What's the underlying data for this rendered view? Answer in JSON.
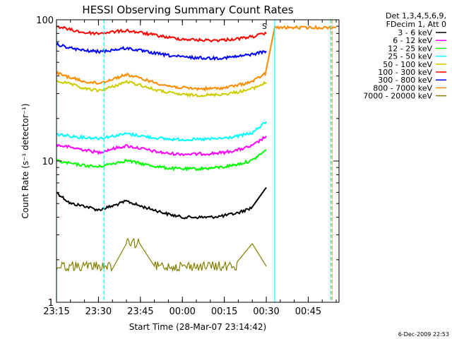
{
  "chart_data": {
    "type": "line",
    "title": "HESSI Observing Summary Count Rates",
    "xlabel": "Start Time (28-Mar-07 23:14:42)",
    "ylabel": "Count Rate (s⁻¹ detector⁻¹)",
    "y_scale": "log",
    "ylim": [
      1,
      100
    ],
    "xlim": [
      "23:15",
      "00:56"
    ],
    "grid": false,
    "legend_placement": "right",
    "footer": "6-Dec-2009 22:53",
    "x_ticks": [
      "23:15",
      "23:30",
      "23:45",
      "00:00",
      "00:15",
      "00:30",
      "00:45"
    ],
    "y_ticks": [
      "1",
      "10",
      "100"
    ],
    "legend_header": [
      "Det 1,3,4,5,6,9,",
      "FDecim 1, Att 0"
    ],
    "annotations": [
      {
        "label": "S",
        "time": "00:30",
        "color": "#ff8c00"
      }
    ],
    "vlines": [
      {
        "time": "23:15",
        "color": "#00ffff",
        "style": "dashed"
      },
      {
        "time": "23:32",
        "color": "#00ffff",
        "style": "dashed"
      },
      {
        "time": "00:33",
        "color": "#00ffff",
        "style": "solid"
      },
      {
        "time": "00:53",
        "color": "#00ffff",
        "style": "dashed"
      },
      {
        "time": "00:53",
        "color": "#ff8c00",
        "style": "dashed"
      }
    ],
    "series": [
      {
        "name": "3 - 6 keV",
        "color": "#000000",
        "time": [
          "23:15",
          "23:20",
          "23:25",
          "23:30",
          "23:35",
          "23:40",
          "23:45",
          "23:50",
          "23:55",
          "00:00",
          "00:05",
          "00:10",
          "00:15",
          "00:20",
          "00:25",
          "00:30"
        ],
        "values": [
          6.0,
          5.0,
          4.8,
          4.5,
          4.8,
          5.2,
          4.8,
          4.5,
          4.2,
          4.0,
          4.0,
          4.0,
          4.1,
          4.3,
          4.7,
          6.5
        ]
      },
      {
        "name": "6 - 12 keV",
        "color": "#ff00ff",
        "time": [
          "23:15",
          "23:20",
          "23:25",
          "23:30",
          "23:35",
          "23:40",
          "23:45",
          "23:50",
          "23:55",
          "00:00",
          "00:05",
          "00:10",
          "00:15",
          "00:20",
          "00:25",
          "00:30"
        ],
        "values": [
          13.0,
          12.5,
          12.0,
          11.5,
          12.2,
          12.8,
          12.3,
          11.7,
          11.3,
          11.2,
          11.2,
          11.3,
          11.5,
          12.0,
          12.8,
          15.0
        ]
      },
      {
        "name": "12 - 25 keV",
        "color": "#00ff00",
        "time": [
          "23:15",
          "23:20",
          "23:25",
          "23:30",
          "23:35",
          "23:40",
          "23:45",
          "23:50",
          "23:55",
          "00:00",
          "00:05",
          "00:10",
          "00:15",
          "00:20",
          "00:25",
          "00:30"
        ],
        "values": [
          10.0,
          9.6,
          9.3,
          9.1,
          9.6,
          10.1,
          9.6,
          9.2,
          8.9,
          8.8,
          8.8,
          8.9,
          9.1,
          9.5,
          10.1,
          12.0
        ]
      },
      {
        "name": "25 - 50 keV",
        "color": "#00ffff",
        "time": [
          "23:15",
          "23:20",
          "23:25",
          "23:30",
          "23:35",
          "23:40",
          "23:45",
          "23:50",
          "23:55",
          "00:00",
          "00:05",
          "00:10",
          "00:15",
          "00:20",
          "00:25",
          "00:30"
        ],
        "values": [
          15.5,
          15.0,
          14.7,
          14.5,
          15.0,
          15.6,
          15.1,
          14.6,
          14.3,
          14.2,
          14.2,
          14.3,
          14.5,
          15.0,
          15.8,
          19.0
        ]
      },
      {
        "name": "50 - 100 keV",
        "color": "#cccc00",
        "time": [
          "23:15",
          "23:20",
          "23:25",
          "23:30",
          "23:35",
          "23:40",
          "23:45",
          "23:50",
          "23:55",
          "00:00",
          "00:05",
          "00:10",
          "00:15",
          "00:20",
          "00:25",
          "00:30"
        ],
        "values": [
          37.0,
          35.0,
          32.5,
          31.5,
          33.5,
          36.5,
          34.5,
          32.0,
          30.5,
          29.5,
          29.3,
          29.3,
          29.8,
          30.8,
          32.5,
          36.0
        ]
      },
      {
        "name": "100 - 300 keV",
        "color": "#ff0000",
        "time": [
          "23:15",
          "23:20",
          "23:25",
          "23:30",
          "23:35",
          "23:40",
          "23:45",
          "23:50",
          "23:55",
          "00:00",
          "00:05",
          "00:10",
          "00:15",
          "00:20",
          "00:25",
          "00:30"
        ],
        "values": [
          90.0,
          85.0,
          81.0,
          80.0,
          82.0,
          84.0,
          81.0,
          78.0,
          75.0,
          73.0,
          72.0,
          71.5,
          72.0,
          73.5,
          76.0,
          80.0
        ]
      },
      {
        "name": "300 - 800 keV",
        "color": "#0000ff",
        "time": [
          "23:15",
          "23:20",
          "23:25",
          "23:30",
          "23:35",
          "23:40",
          "23:45",
          "23:50",
          "23:55",
          "00:00",
          "00:05",
          "00:10",
          "00:15",
          "00:20",
          "00:25",
          "00:30"
        ],
        "values": [
          67.0,
          63.0,
          60.5,
          59.5,
          61.0,
          63.0,
          60.5,
          58.0,
          56.0,
          54.5,
          53.8,
          53.5,
          53.8,
          55.0,
          57.0,
          60.0
        ]
      },
      {
        "name": "800 - 7000 keV",
        "color": "#ff8c00",
        "time": [
          "23:15",
          "23:20",
          "23:25",
          "23:30",
          "23:35",
          "23:40",
          "23:45",
          "23:50",
          "23:55",
          "00:00",
          "00:05",
          "00:10",
          "00:15",
          "00:20",
          "00:25",
          "00:30",
          "00:33",
          "00:40",
          "00:45",
          "00:50",
          "00:55"
        ],
        "values": [
          42.0,
          39.0,
          36.5,
          35.5,
          38.0,
          41.0,
          38.5,
          36.0,
          34.0,
          33.0,
          32.5,
          32.5,
          33.0,
          34.5,
          36.5,
          42.0,
          88.0,
          88.0,
          88.0,
          88.0,
          88.0
        ]
      },
      {
        "name": "7000 - 20000 keV",
        "color": "#808000",
        "time": [
          "23:15",
          "23:20",
          "23:25",
          "23:30",
          "23:35",
          "23:40",
          "23:45",
          "23:50",
          "23:55",
          "00:00",
          "00:05",
          "00:10",
          "00:15",
          "00:20",
          "00:25",
          "00:30"
        ],
        "values": [
          1.8,
          1.8,
          1.8,
          1.8,
          1.8,
          2.6,
          2.6,
          1.8,
          1.8,
          1.8,
          1.8,
          1.8,
          1.8,
          1.8,
          2.6,
          1.8
        ]
      }
    ]
  }
}
